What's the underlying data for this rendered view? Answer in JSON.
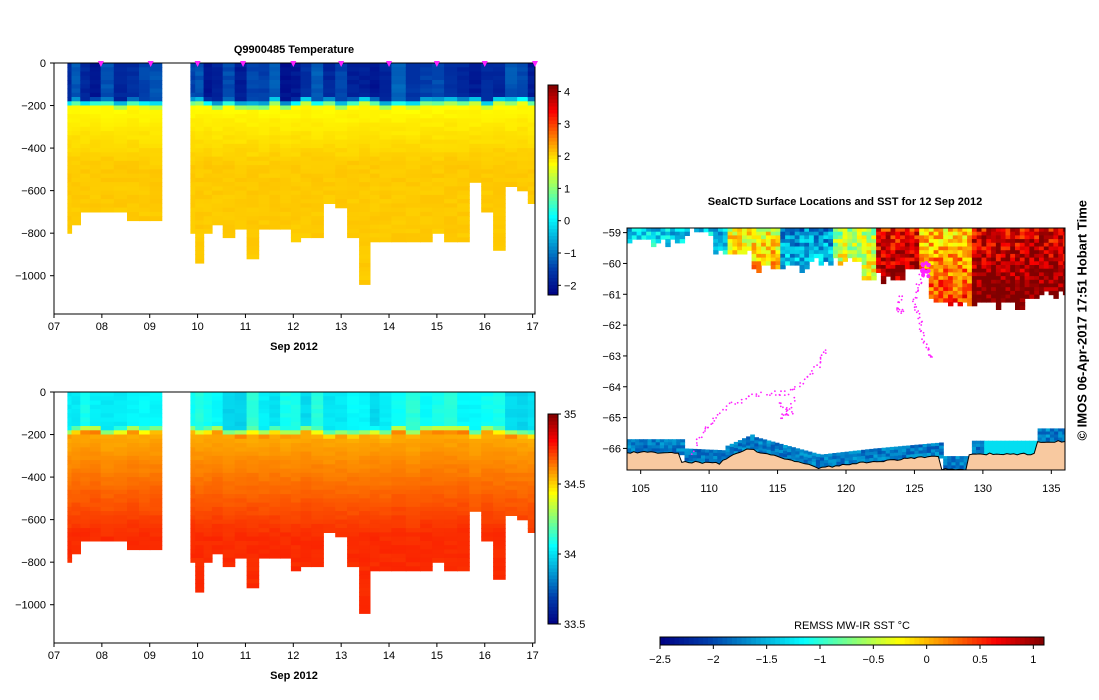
{
  "chart_data": [
    {
      "type": "heatmap",
      "title": "Q9900485  Temperature",
      "xlabel": "Sep 2012",
      "x_ticks": [
        "07",
        "08",
        "09",
        "10",
        "11",
        "12",
        "13",
        "14",
        "15",
        "16",
        "17"
      ],
      "x_range": [
        7.0,
        17.05
      ],
      "y_ticks": [
        0,
        -200,
        -400,
        -600,
        -800,
        -1000
      ],
      "y_range": [
        -1180,
        0
      ],
      "colorbar": {
        "min": -2.3,
        "max": 4.2,
        "ticks": [
          -2,
          -1,
          0,
          1,
          2,
          3,
          4
        ]
      },
      "variable": "temperature",
      "surface_value": -1.6,
      "mixed_layer_depth": 170,
      "deep_value": 2.0,
      "gap_days": [
        9.25,
        9.85
      ],
      "markers_x": [
        7.98,
        9.02,
        10.0,
        10.95,
        12.0,
        13.0,
        14.0,
        15.0,
        16.0,
        17.05
      ],
      "profile_days": [
        7.28,
        7.45,
        7.65,
        7.85,
        8.1,
        8.4,
        8.65,
        8.9,
        9.1,
        9.85,
        10.05,
        10.2,
        10.4,
        10.65,
        10.9,
        11.15,
        11.4,
        11.6,
        11.85,
        12.05,
        12.25,
        12.5,
        12.75,
        13.0,
        13.25,
        13.5,
        13.7,
        13.9,
        14.2,
        14.5,
        14.8,
        15.0,
        15.3,
        15.55,
        15.8,
        16.05,
        16.3,
        16.55,
        16.8,
        17.0
      ],
      "profile_depths": [
        800,
        760,
        700,
        700,
        700,
        700,
        740,
        740,
        740,
        800,
        930,
        800,
        750,
        820,
        780,
        910,
        780,
        780,
        780,
        840,
        820,
        820,
        650,
        680,
        810,
        1040,
        830,
        830,
        830,
        840,
        840,
        790,
        830,
        830,
        550,
        700,
        870,
        580,
        600,
        650
      ]
    },
    {
      "type": "heatmap",
      "title": "",
      "xlabel": "Sep 2012",
      "x_ticks": [
        "07",
        "08",
        "09",
        "10",
        "11",
        "12",
        "13",
        "14",
        "15",
        "16",
        "17"
      ],
      "x_range": [
        7.0,
        17.05
      ],
      "y_ticks": [
        0,
        -200,
        -400,
        -600,
        -800,
        -1000
      ],
      "y_range": [
        -1180,
        0
      ],
      "colorbar": {
        "min": 33.5,
        "max": 35.0,
        "ticks": [
          33.5,
          34,
          34.5,
          35
        ]
      },
      "colorbar_tick_labels": [
        "33.5",
        "34",
        "34.5",
        "35"
      ],
      "variable": "salinity",
      "surface_value": 34.05,
      "mixed_layer_depth": 170,
      "deep_value": 34.7,
      "gap_days": [
        9.25,
        9.85
      ]
    },
    {
      "type": "map",
      "title": "SealCTD Surface Locations and SST for 12 Sep 2012",
      "lon_ticks": [
        "105",
        "110",
        "115",
        "120",
        "125",
        "130",
        "135"
      ],
      "lon_range": [
        104.0,
        136.0
      ],
      "lat_ticks": [
        "-59",
        "-60",
        "-61",
        "-62",
        "-63",
        "-64",
        "-65",
        "-66"
      ],
      "lat_range": [
        -66.7,
        -58.85
      ],
      "colorbar_label": "REMSS MW-IR SST °C",
      "colorbar": {
        "min": -2.5,
        "max": 1.1,
        "ticks": [
          -2.5,
          -2,
          -1.5,
          -1,
          -0.5,
          0,
          0.5,
          1
        ],
        "tick_labels": [
          "-2.5",
          "-2",
          "-1.5",
          "-1",
          "-0.5",
          "0",
          "0.5",
          "1"
        ]
      },
      "side_label": "© IMOS 06-Apr-2017 17:51 Hobart Time"
    }
  ]
}
